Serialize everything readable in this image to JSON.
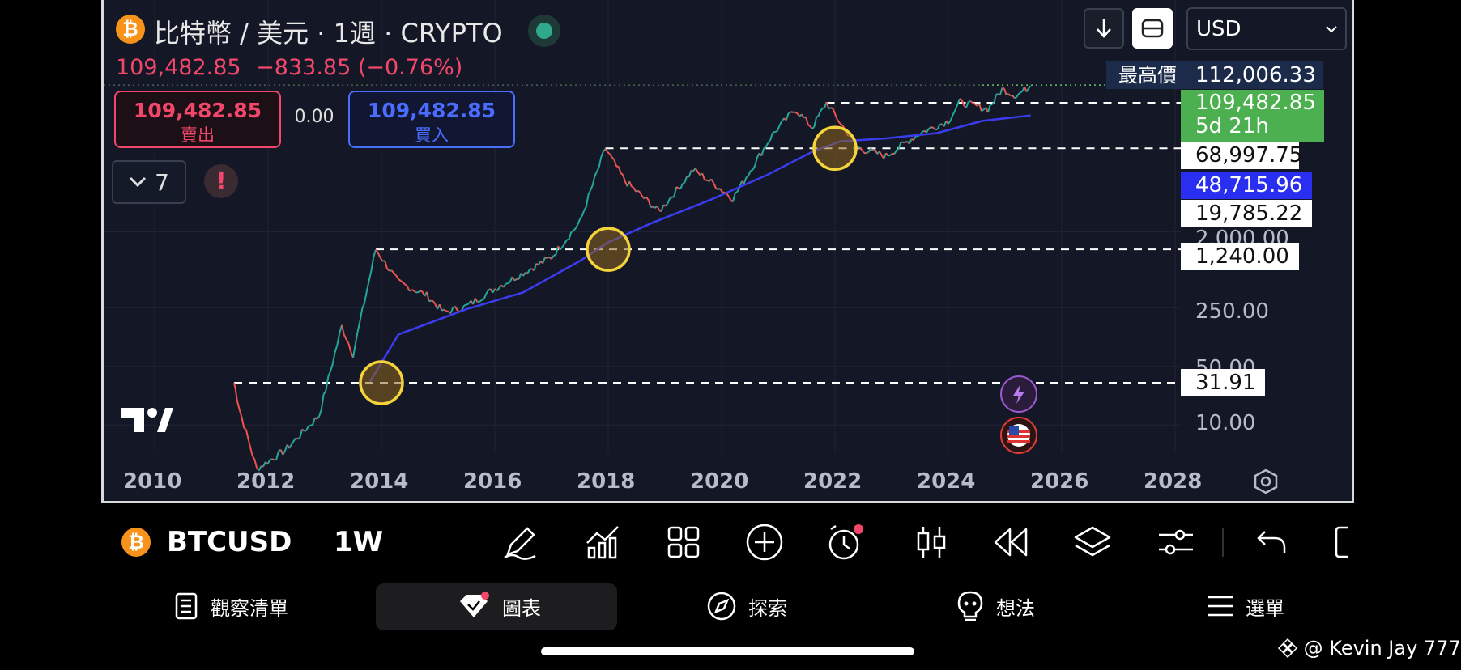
{
  "header": {
    "coin_badge": "₿",
    "title": "比特幣 / 美元 · 1週 · CRYPTO",
    "quote_price": "109,482.85",
    "quote_change": "−833.85 (−0.76%)"
  },
  "trade": {
    "sell_price": "109,482.85",
    "sell_label": "賣出",
    "spread": "0.00",
    "buy_price": "109,482.85",
    "buy_label": "買入"
  },
  "indicators": {
    "count": "7",
    "alert_symbol": "!"
  },
  "top_toolbar": {
    "currency": "USD",
    "down_icon": "arrow-down-icon",
    "layout_icon": "rectangle-icon"
  },
  "price_axis": {
    "ath_label": "最高價",
    "ath_value": "112,006.33",
    "current_value": "109,482.85",
    "countdown": "5d 21h",
    "level_68997": "68,997.75",
    "ma_value": "48,715.96",
    "level_19785": "19,785.22",
    "tick_2000": "2,000.00",
    "level_1240": "1,240.00",
    "tick_250": "250.00",
    "tick_50": "50.00",
    "level_31": "31.91",
    "tick_10": "10.00"
  },
  "time_axis": [
    "2010",
    "2012",
    "2014",
    "2016",
    "2018",
    "2020",
    "2022",
    "2024",
    "2026",
    "2028"
  ],
  "chart_data": {
    "type": "line",
    "log_scale": true,
    "series": [
      {
        "x": [
          2011.4,
          2011.5,
          2011.8,
          2012.3,
          2012.9,
          2013.3,
          2013.5,
          2013.9,
          2014.3,
          2014.8,
          2015.1,
          2015.5,
          2016.0,
          2016.5,
          2017.0,
          2017.5,
          2017.95,
          2018.3,
          2018.9,
          2019.5,
          2019.9,
          2020.2,
          2020.9,
          2021.3,
          2021.6,
          2021.85,
          2022.4,
          2022.9,
          2023.5,
          2024.0,
          2024.2,
          2024.7,
          2024.95,
          2025.2,
          2025.45
        ],
        "values": [
          31.91,
          15,
          3,
          5,
          13,
          150,
          70,
          1240,
          500,
          350,
          220,
          260,
          420,
          650,
          1000,
          2600,
          19785,
          8000,
          3500,
          11000,
          7200,
          5000,
          29000,
          58000,
          35000,
          68997,
          20000,
          16000,
          30000,
          42000,
          70000,
          58000,
          100000,
          84000,
          109482.85
        ]
      },
      {
        "x": [
          2013.8,
          2014.3,
          2015.5,
          2016.5,
          2017.5,
          2018.0,
          2018.8,
          2019.8,
          2020.8,
          2021.6,
          2022.1,
          2022.9,
          2023.8,
          2024.6,
          2025.45
        ],
        "values": [
          33,
          120,
          240,
          380,
          900,
          1500,
          2600,
          4800,
          9500,
          18000,
          24000,
          26000,
          30000,
          42000,
          48715.96
        ]
      }
    ],
    "horizontal_levels": [
      112006.33,
      68997.75,
      19785.22,
      1240,
      31.91
    ]
  },
  "bottom_toolbar": {
    "symbol": "BTCUSD",
    "interval": "1W",
    "tools": [
      "pen-icon",
      "indicators-icon",
      "grid-icon",
      "plus-circle-icon",
      "alarm-icon",
      "candles-icon",
      "replay-icon",
      "layers-icon",
      "settings-sliders-icon",
      "undo-icon",
      "fullscreen-icon"
    ]
  },
  "nav": {
    "watchlist": "觀察清單",
    "chart": "圖表",
    "explore": "探索",
    "ideas": "想法",
    "menu": "選單"
  },
  "watermark": "@ Kevin Jay 777"
}
